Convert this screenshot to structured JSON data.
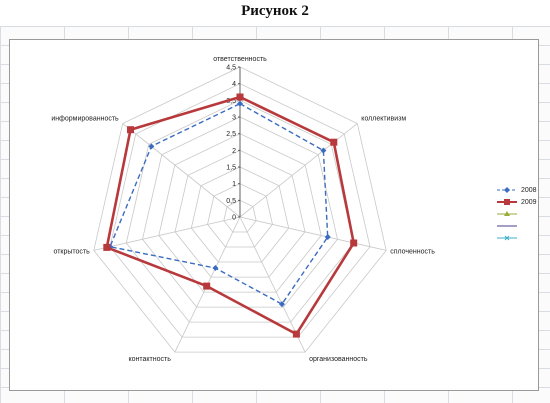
{
  "page": {
    "title": "Рисунок 2"
  },
  "colors": {
    "series_2008": "#3b6cc0",
    "series_2009": "#b8393b",
    "legend_extra_1": "#9aab3a",
    "legend_extra_2": "#4b3d8f",
    "legend_extra_3": "#3fb0c8",
    "grid": "#c8c8c8"
  },
  "chart_data": {
    "type": "radar",
    "categories": [
      "ответственность",
      "коллективизм",
      "сплоченность",
      "организованность",
      "контактность",
      "открытость",
      "информированность"
    ],
    "series": [
      {
        "name": "2008",
        "values": [
          3.4,
          3.2,
          2.7,
          2.9,
          1.7,
          4.0,
          3.4
        ],
        "line": "dashed",
        "marker": "diamond"
      },
      {
        "name": "2009",
        "values": [
          3.6,
          3.6,
          3.5,
          3.9,
          2.3,
          4.1,
          4.2
        ],
        "line": "solid",
        "marker": "square"
      }
    ],
    "legend_extra_entries": [
      {
        "name": "",
        "marker": "triangle"
      },
      {
        "name": "",
        "marker": "none"
      },
      {
        "name": "",
        "marker": "cross"
      }
    ],
    "ylim": [
      0,
      4.5
    ],
    "ticks": [
      "0",
      "0,5",
      "1",
      "1,5",
      "2",
      "2,5",
      "3",
      "3,5",
      "4",
      "4,5"
    ],
    "tick_values": [
      0,
      0.5,
      1,
      1.5,
      2,
      2.5,
      3,
      3.5,
      4,
      4.5
    ],
    "grid": true,
    "legend_position": "right"
  }
}
